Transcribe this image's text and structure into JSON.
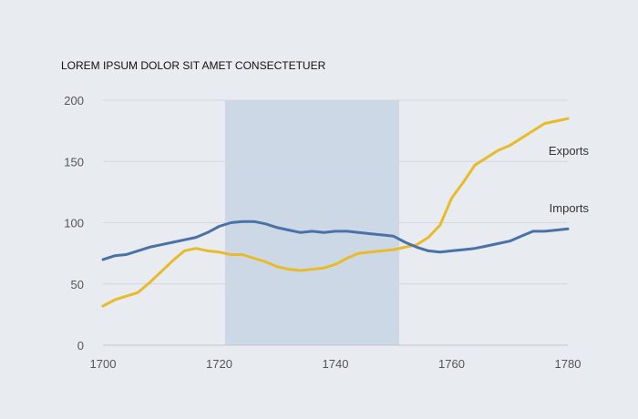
{
  "chart_data": {
    "type": "line",
    "title": "LOREM IPSUM DOLOR SIT AMET CONSECTETUER",
    "xlabel": "",
    "ylabel": "",
    "xlim": [
      1700,
      1780
    ],
    "ylim": [
      0,
      200
    ],
    "x_ticks": [
      1700,
      1720,
      1740,
      1760,
      1780
    ],
    "y_ticks": [
      0,
      50,
      100,
      150,
      200
    ],
    "grid": true,
    "shaded_range": {
      "x_start": 1721,
      "x_end": 1751,
      "color": "#cdd8e6"
    },
    "series": [
      {
        "name": "Exports",
        "color": "#e8bb2b",
        "x": [
          1700,
          1702,
          1704,
          1706,
          1708,
          1710,
          1712,
          1714,
          1716,
          1718,
          1720,
          1722,
          1724,
          1726,
          1728,
          1730,
          1732,
          1734,
          1736,
          1738,
          1740,
          1742,
          1744,
          1746,
          1748,
          1750,
          1752,
          1754,
          1756,
          1758,
          1760,
          1762,
          1764,
          1766,
          1768,
          1770,
          1772,
          1774,
          1776,
          1778,
          1780
        ],
        "y": [
          32,
          37,
          40,
          43,
          51,
          60,
          69,
          77,
          79,
          77,
          76,
          74,
          74,
          71,
          68,
          64,
          62,
          61,
          62,
          63,
          66,
          71,
          75,
          76,
          77,
          78,
          80,
          82,
          88,
          98,
          120,
          133,
          147,
          153,
          159,
          163,
          169,
          175,
          181,
          183,
          185
        ]
      },
      {
        "name": "Imports",
        "color": "#4a72a6",
        "x": [
          1700,
          1702,
          1704,
          1706,
          1708,
          1710,
          1712,
          1714,
          1716,
          1718,
          1720,
          1722,
          1724,
          1726,
          1728,
          1730,
          1732,
          1734,
          1736,
          1738,
          1740,
          1742,
          1744,
          1746,
          1748,
          1750,
          1752,
          1754,
          1756,
          1758,
          1760,
          1762,
          1764,
          1766,
          1768,
          1770,
          1772,
          1774,
          1776,
          1778,
          1780
        ],
        "y": [
          70,
          73,
          74,
          77,
          80,
          82,
          84,
          86,
          88,
          92,
          97,
          100,
          101,
          101,
          99,
          96,
          94,
          92,
          93,
          92,
          93,
          93,
          92,
          91,
          90,
          89,
          84,
          80,
          77,
          76,
          77,
          78,
          79,
          81,
          83,
          85,
          89,
          93,
          93,
          94,
          95
        ]
      }
    ]
  }
}
